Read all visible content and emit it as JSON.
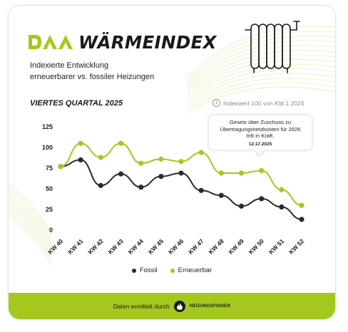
{
  "header": {
    "brand": "WÄRMEINDEX",
    "subtitle_line1": "Indexierte Entwicklung",
    "subtitle_line2": "erneuerbarer vs. fossiler Heizungen",
    "quarter": "VIERTES QUARTAL 2025",
    "index_note": "Indexwert 100 von KW.1 2024",
    "logo_icon": "daa-logo-icon",
    "radiator_icon": "radiator-icon"
  },
  "annotation": {
    "text_line1": "Gesetz über Zuschuss zu",
    "text_line2": "Übertragungsnetzkosten für 2026",
    "text_line3": "tritt in Kraft.",
    "date": "12.12.2025"
  },
  "colors": {
    "fossil": "#2b2b2b",
    "erneuerbar": "#a4c81e",
    "footer_bg": "#a4c81e"
  },
  "chart_data": {
    "type": "line",
    "categories": [
      "KW 40",
      "KW 41",
      "KW 42",
      "KW 43",
      "KW 44",
      "KW 45",
      "KW 46",
      "KW 47",
      "KW 48",
      "KW 49",
      "KW 50",
      "KW 51",
      "KW 52"
    ],
    "series": [
      {
        "name": "Fossil",
        "values": [
          77,
          85,
          54,
          68,
          52,
          65,
          69,
          48,
          42,
          29,
          38,
          28,
          13
        ]
      },
      {
        "name": "Erneuerbar",
        "values": [
          77,
          105,
          88,
          105,
          81,
          86,
          83,
          94,
          69,
          69,
          72,
          49,
          30
        ]
      }
    ],
    "yticks": [
      "0",
      "25",
      "50",
      "75",
      "100",
      "125"
    ],
    "ylim": [
      0,
      125
    ],
    "grid": false,
    "legend_position": "bottom-center"
  },
  "footer": {
    "text": "Daten ermittelt durch",
    "brand": "HEIZUNGSFINDER",
    "icon": "flame-icon"
  }
}
